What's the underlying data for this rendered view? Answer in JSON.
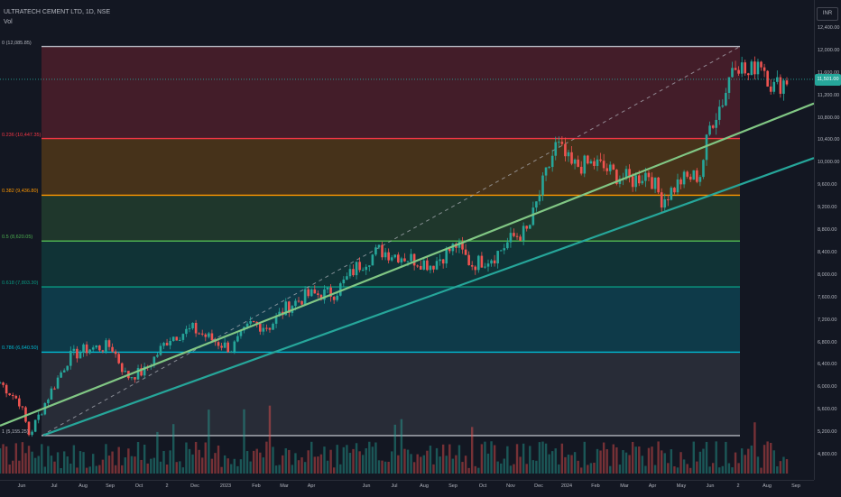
{
  "legend": {
    "symbol": "ULTRATECH CEMENT LTD, 1D, NSE",
    "volume_label": "Vol"
  },
  "currency_label": "INR",
  "current_price_label": "11,501.00",
  "colors": {
    "up": "#26a69a",
    "down": "#ef5350",
    "trendline_green": "#81c784",
    "trendline_teal": "#26a69a",
    "fib_0": "#b2b5be",
    "fib_0236": "#f23645",
    "fib_0382": "#ff9800",
    "fib_05": "#4caf50",
    "fib_0618": "#089981",
    "fib_0786": "#00bcd4",
    "fib_1": "#b2b5be"
  },
  "chart_data": {
    "type": "candlestick",
    "y_axis_ticks": [
      "12,400.00",
      "12,000.00",
      "11,600.00",
      "11,200.00",
      "10,800.00",
      "10,400.00",
      "10,000.00",
      "9,600.00",
      "9,200.00",
      "8,800.00",
      "8,400.00",
      "8,000.00",
      "7,600.00",
      "7,200.00",
      "6,800.00",
      "6,400.00",
      "6,000.00",
      "5,600.00",
      "5,200.00",
      "4,800.00"
    ],
    "y_tick_values": [
      12400,
      12000,
      11600,
      11200,
      10800,
      10400,
      10000,
      9600,
      9200,
      8800,
      8400,
      8000,
      7600,
      7200,
      6800,
      6400,
      6000,
      5600,
      5200,
      4800
    ],
    "x_axis_ticks": [
      "Jun",
      "Jul",
      "Aug",
      "Sep",
      "Oct",
      "2",
      "Dec",
      "2023",
      "Feb",
      "Mar",
      "Apr",
      "Jun",
      "Jul",
      "Aug",
      "Sep",
      "Oct",
      "Nov",
      "Dec",
      "2024",
      "Feb",
      "Mar",
      "Apr",
      "May",
      "Jun",
      "2",
      "Aug",
      "Sep"
    ],
    "fib_levels": [
      {
        "ratio": 0,
        "label": "0 (12,085.85)",
        "price": 12085.85
      },
      {
        "ratio": 0.236,
        "label": "0.236 (10,447.35)",
        "price": 10447.35
      },
      {
        "ratio": 0.382,
        "label": "0.382 (9,436.80)",
        "price": 9436.8
      },
      {
        "ratio": 0.5,
        "label": "0.5 (8,620.05)",
        "price": 8620.05
      },
      {
        "ratio": 0.618,
        "label": "0.618 (7,803.30)",
        "price": 7803.3
      },
      {
        "ratio": 0.786,
        "label": "0.786 (6,640.50)",
        "price": 6640.5
      },
      {
        "ratio": 1,
        "label": "1 (5,155.25)",
        "price": 5155.25
      }
    ],
    "price_path": [
      {
        "date": "2022-05-20",
        "close": 6100
      },
      {
        "date": "2022-06-10",
        "close": 5750
      },
      {
        "date": "2022-06-20",
        "close": 5160
      },
      {
        "date": "2022-07-10",
        "close": 5850
      },
      {
        "date": "2022-08-01",
        "close": 6550
      },
      {
        "date": "2022-08-20",
        "close": 6700
      },
      {
        "date": "2022-09-15",
        "close": 6750
      },
      {
        "date": "2022-10-01",
        "close": 6200
      },
      {
        "date": "2022-10-20",
        "close": 6300
      },
      {
        "date": "2022-11-15",
        "close": 6900
      },
      {
        "date": "2022-12-10",
        "close": 7050
      },
      {
        "date": "2023-01-01",
        "close": 6850
      },
      {
        "date": "2023-01-20",
        "close": 6700
      },
      {
        "date": "2023-02-10",
        "close": 7150
      },
      {
        "date": "2023-03-01",
        "close": 7100
      },
      {
        "date": "2023-03-20",
        "close": 7450
      },
      {
        "date": "2023-04-10",
        "close": 7650
      },
      {
        "date": "2023-05-10",
        "close": 7700
      },
      {
        "date": "2023-06-01",
        "close": 8150
      },
      {
        "date": "2023-06-25",
        "close": 8450
      },
      {
        "date": "2023-07-20",
        "close": 8350
      },
      {
        "date": "2023-08-20",
        "close": 8200
      },
      {
        "date": "2023-09-15",
        "close": 8550
      },
      {
        "date": "2023-10-01",
        "close": 8200
      },
      {
        "date": "2023-10-25",
        "close": 8350
      },
      {
        "date": "2023-11-15",
        "close": 8700
      },
      {
        "date": "2023-11-30",
        "close": 8800
      },
      {
        "date": "2023-12-15",
        "close": 9600
      },
      {
        "date": "2023-12-30",
        "close": 10350
      },
      {
        "date": "2024-01-15",
        "close": 9950
      },
      {
        "date": "2024-02-10",
        "close": 10000
      },
      {
        "date": "2024-03-01",
        "close": 9800
      },
      {
        "date": "2024-03-20",
        "close": 9700
      },
      {
        "date": "2024-04-05",
        "close": 9850
      },
      {
        "date": "2024-04-20",
        "close": 9350
      },
      {
        "date": "2024-05-10",
        "close": 9700
      },
      {
        "date": "2024-05-30",
        "close": 9800
      },
      {
        "date": "2024-06-10",
        "close": 10700
      },
      {
        "date": "2024-06-25",
        "close": 11200
      },
      {
        "date": "2024-07-05",
        "close": 11900
      },
      {
        "date": "2024-07-20",
        "close": 11550
      },
      {
        "date": "2024-08-01",
        "close": 11900
      },
      {
        "date": "2024-08-15",
        "close": 11350
      },
      {
        "date": "2024-08-30",
        "close": 11500
      }
    ]
  }
}
